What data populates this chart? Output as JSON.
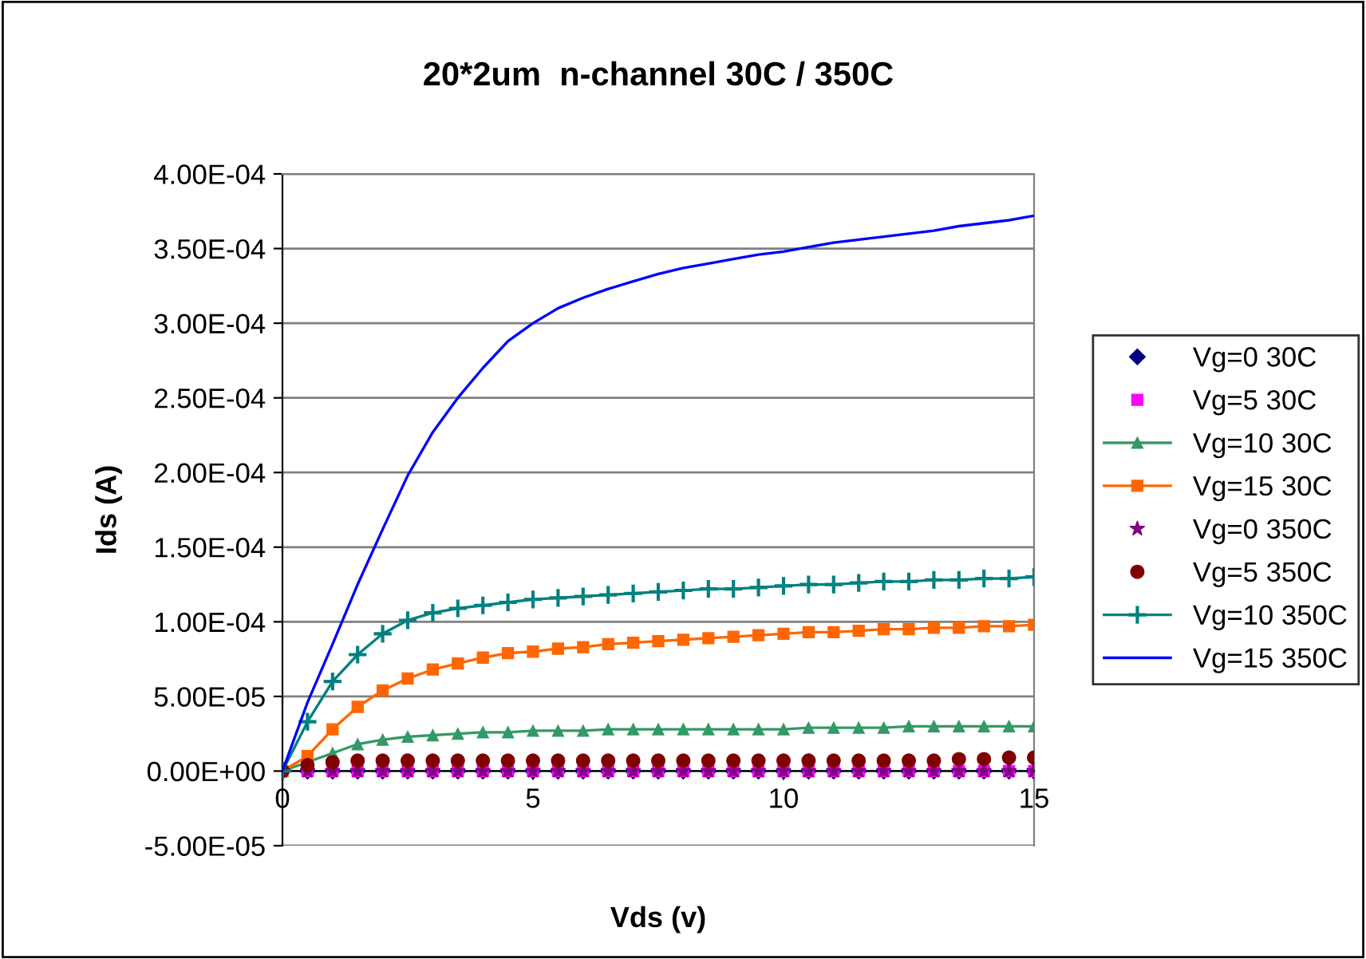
{
  "chart_data": {
    "type": "line",
    "title": "20*2um  n-channel 30C / 350C",
    "xlabel": "Vds (v)",
    "ylabel": "Ids (A)",
    "x": [
      0,
      0.5,
      1,
      1.5,
      2,
      2.5,
      3,
      3.5,
      4,
      4.5,
      5,
      5.5,
      6,
      6.5,
      7,
      7.5,
      8,
      8.5,
      9,
      9.5,
      10,
      10.5,
      11,
      11.5,
      12,
      12.5,
      13,
      13.5,
      14,
      14.5,
      15
    ],
    "series": [
      {
        "name": "Vg=0 30C",
        "type": "scatter",
        "marker": "diamond",
        "color": "#000080",
        "values": [
          null,
          0,
          0,
          0,
          0,
          0,
          0,
          0,
          0,
          0,
          0,
          0,
          0,
          0,
          0,
          0,
          0,
          0,
          0,
          0,
          0,
          0,
          0,
          0,
          0,
          0,
          0,
          0,
          0,
          0,
          0
        ]
      },
      {
        "name": "Vg=5 30C",
        "type": "scatter",
        "marker": "square",
        "color": "#ff00ff",
        "values": [
          null,
          0,
          0,
          0,
          0,
          0,
          0,
          0,
          0,
          0,
          0,
          0,
          0,
          0,
          0,
          0,
          0,
          0,
          0,
          0,
          0,
          0,
          0,
          0,
          0,
          0,
          0,
          0,
          0,
          0,
          0
        ]
      },
      {
        "name": "Vg=10 30C",
        "marker": "triangle",
        "color": "#339966",
        "values": [
          0,
          6e-06,
          1.2e-05,
          1.8e-05,
          2.1e-05,
          2.3e-05,
          2.4e-05,
          2.5e-05,
          2.6e-05,
          2.6e-05,
          2.7e-05,
          2.7e-05,
          2.7e-05,
          2.8e-05,
          2.8e-05,
          2.8e-05,
          2.8e-05,
          2.8e-05,
          2.8e-05,
          2.8e-05,
          2.8e-05,
          2.9e-05,
          2.9e-05,
          2.9e-05,
          2.9e-05,
          3e-05,
          3e-05,
          3e-05,
          3e-05,
          3e-05,
          3e-05
        ]
      },
      {
        "name": "Vg=15 30C",
        "marker": "square",
        "color": "#ff6600",
        "values": [
          0,
          1e-05,
          2.8e-05,
          4.3e-05,
          5.4e-05,
          6.2e-05,
          6.8e-05,
          7.2e-05,
          7.6e-05,
          7.9e-05,
          8e-05,
          8.2e-05,
          8.3e-05,
          8.5e-05,
          8.6e-05,
          8.7e-05,
          8.8e-05,
          8.9e-05,
          9e-05,
          9.1e-05,
          9.2e-05,
          9.3e-05,
          9.3e-05,
          9.4e-05,
          9.5e-05,
          9.5e-05,
          9.6e-05,
          9.6e-05,
          9.7e-05,
          9.7e-05,
          9.8e-05
        ]
      },
      {
        "name": "Vg=0 350C",
        "type": "scatter",
        "marker": "star",
        "color": "#800080",
        "values": [
          0,
          0,
          0,
          0,
          0,
          0,
          0,
          0,
          0,
          0,
          0,
          0,
          0,
          0,
          0,
          0,
          0,
          0,
          0,
          0,
          0,
          0,
          0,
          0,
          0,
          0,
          0,
          0,
          0,
          0,
          0
        ]
      },
      {
        "name": "Vg=5 350C",
        "type": "scatter",
        "marker": "circle",
        "color": "#800000",
        "values": [
          0,
          4e-06,
          6e-06,
          7e-06,
          7e-06,
          7e-06,
          7e-06,
          7e-06,
          7e-06,
          7e-06,
          7e-06,
          7e-06,
          7e-06,
          7e-06,
          7e-06,
          7e-06,
          7e-06,
          7e-06,
          7e-06,
          7e-06,
          7e-06,
          7e-06,
          7e-06,
          7e-06,
          7e-06,
          7e-06,
          7e-06,
          8e-06,
          8e-06,
          9e-06,
          9e-06
        ]
      },
      {
        "name": "Vg=10 350C",
        "marker": "cross",
        "color": "#008080",
        "values": [
          0,
          3.3e-05,
          6e-05,
          7.8e-05,
          9.2e-05,
          0.000101,
          0.000106,
          0.000109,
          0.000111,
          0.000113,
          0.000115,
          0.000116,
          0.000117,
          0.000118,
          0.000119,
          0.00012,
          0.000121,
          0.000122,
          0.000122,
          0.000123,
          0.000124,
          0.000125,
          0.000125,
          0.000126,
          0.000127,
          0.000127,
          0.000128,
          0.000128,
          0.000129,
          0.000129,
          0.00013
        ]
      },
      {
        "name": "Vg=15 350C",
        "color": "#0000ff",
        "values": [
          0,
          4.6e-05,
          8.5e-05,
          0.000125,
          0.000162,
          0.000198,
          0.000227,
          0.00025,
          0.00027,
          0.000288,
          0.0003,
          0.00031,
          0.000317,
          0.000323,
          0.000328,
          0.000333,
          0.000337,
          0.00034,
          0.000343,
          0.000346,
          0.000348,
          0.000351,
          0.000354,
          0.000356,
          0.000358,
          0.00036,
          0.000362,
          0.000365,
          0.000367,
          0.000369,
          0.000372
        ]
      }
    ],
    "xlim": [
      0,
      15
    ],
    "xticks": [
      0,
      5,
      10,
      15
    ],
    "ylim": [
      -5e-05,
      0.0004
    ],
    "yticks": [
      {
        "value": -5e-05,
        "label": "-5.00E-05"
      },
      {
        "value": 0,
        "label": "0.00E+00"
      },
      {
        "value": 5e-05,
        "label": "5.00E-05"
      },
      {
        "value": 0.0001,
        "label": "1.00E-04"
      },
      {
        "value": 0.00015,
        "label": "1.50E-04"
      },
      {
        "value": 0.0002,
        "label": "2.00E-04"
      },
      {
        "value": 0.00025,
        "label": "2.50E-04"
      },
      {
        "value": 0.0003,
        "label": "3.00E-04"
      },
      {
        "value": 0.00035,
        "label": "3.50E-04"
      },
      {
        "value": 0.0004,
        "label": "4.00E-04"
      }
    ],
    "grid": "y",
    "legend": "right"
  }
}
